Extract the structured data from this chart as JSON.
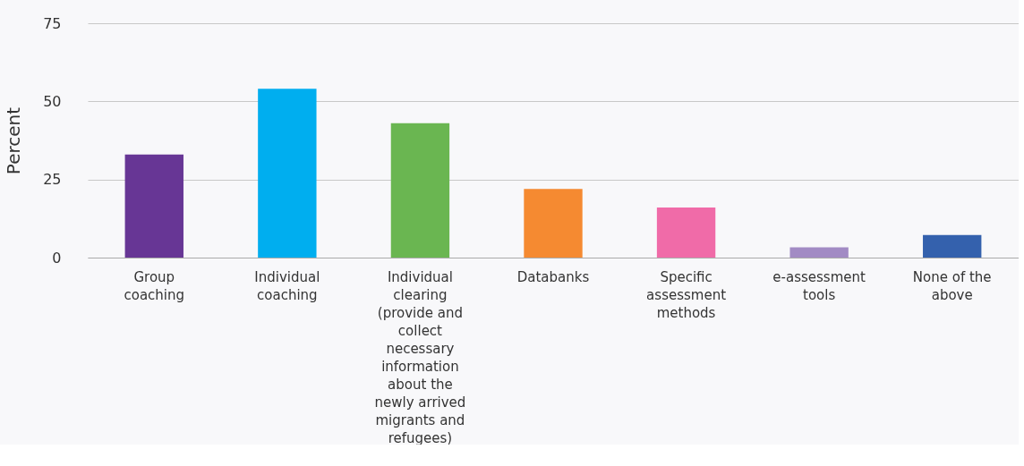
{
  "chart_data": {
    "type": "bar",
    "ylabel": "Percent",
    "categories": [
      "Group coaching",
      "Individual coaching",
      "Individual clearing (provide and collect necessary information about the newly arrived migrants and refugees)",
      "Databanks",
      "Specific assessment methods",
      "e-assessment tools",
      "None of the above"
    ],
    "values": [
      33,
      54,
      43,
      22,
      16,
      3.3,
      7.2
    ],
    "colors": [
      "#673695",
      "#00aeef",
      "#6ab651",
      "#f58a31",
      "#f06ba8",
      "#a28bc4",
      "#3461ad"
    ],
    "ylim": [
      0,
      75
    ],
    "yticks": [
      0,
      25,
      50,
      75
    ],
    "grid": "y"
  }
}
